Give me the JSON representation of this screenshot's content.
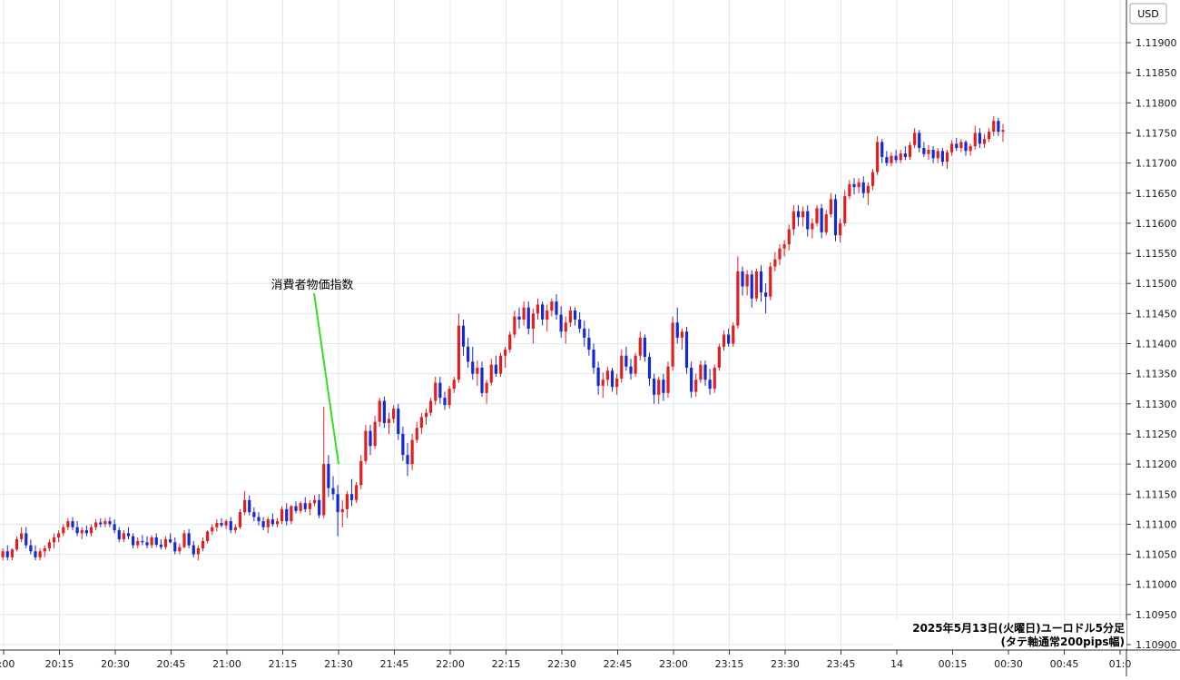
{
  "chart_data": {
    "type": "candlestick",
    "title": "2025年5月13日(火曜日)ユーロドル5分足",
    "subtitle": "(タテ軸通常200pips幅)",
    "currency": "USD",
    "ylim": [
      1.109,
      1.1195
    ],
    "y_ticks": [
      "1.11900",
      "1.11850",
      "1.11800",
      "1.11750",
      "1.11700",
      "1.11650",
      "1.11600",
      "1.11550",
      "1.11500",
      "1.11450",
      "1.11400",
      "1.11350",
      "1.11300",
      "1.11250",
      "1.11200",
      "1.11150",
      "1.11100",
      "1.11050",
      "1.11000",
      "1.10950",
      "1.10900"
    ],
    "x_ticks": [
      "0:00",
      "20:15",
      "20:30",
      "20:45",
      "21:00",
      "21:15",
      "21:30",
      "21:45",
      "22:00",
      "22:15",
      "22:30",
      "22:45",
      "23:00",
      "23:15",
      "23:30",
      "23:45",
      "14",
      "00:15",
      "00:30",
      "00:45",
      "01:0"
    ],
    "candle_step_minutes": 0.9,
    "colors": {
      "up": "#e02020",
      "down": "#1428d6",
      "annotation_line": "#33e01e",
      "grid": "#dde8ef"
    },
    "annotation": {
      "label": "消費者物価指数",
      "time": "21:30",
      "price": 1.112
    },
    "ohlc": [
      [
        1.1104,
        1.1105,
        1.1103,
        1.11045
      ],
      [
        1.11045,
        1.1106,
        1.1104,
        1.11055
      ],
      [
        1.11055,
        1.11065,
        1.1104,
        1.11045
      ],
      [
        1.11045,
        1.1106,
        1.1104,
        1.11058
      ],
      [
        1.11058,
        1.1108,
        1.11055,
        1.11075
      ],
      [
        1.11075,
        1.11095,
        1.1107,
        1.11085
      ],
      [
        1.11085,
        1.11095,
        1.1106,
        1.11065
      ],
      [
        1.11065,
        1.11075,
        1.1105,
        1.11055
      ],
      [
        1.11055,
        1.11065,
        1.1104,
        1.11045
      ],
      [
        1.11045,
        1.1106,
        1.1104,
        1.11055
      ],
      [
        1.11055,
        1.11065,
        1.11045,
        1.1106
      ],
      [
        1.1106,
        1.11075,
        1.11055,
        1.1107
      ],
      [
        1.1107,
        1.11085,
        1.1106,
        1.11078
      ],
      [
        1.11078,
        1.1109,
        1.1107,
        1.11085
      ],
      [
        1.11085,
        1.111,
        1.1108,
        1.11095
      ],
      [
        1.11095,
        1.1111,
        1.1109,
        1.11105
      ],
      [
        1.11105,
        1.11112,
        1.1109,
        1.11095
      ],
      [
        1.11095,
        1.11105,
        1.1108,
        1.11085
      ],
      [
        1.11085,
        1.11095,
        1.11075,
        1.1109
      ],
      [
        1.1109,
        1.11098,
        1.1108,
        1.11085
      ],
      [
        1.11085,
        1.111,
        1.1108,
        1.11095
      ],
      [
        1.11095,
        1.11108,
        1.1109,
        1.11103
      ],
      [
        1.11103,
        1.1111,
        1.11095,
        1.111
      ],
      [
        1.111,
        1.1111,
        1.11095,
        1.11105
      ],
      [
        1.11105,
        1.11112,
        1.11095,
        1.111
      ],
      [
        1.111,
        1.11108,
        1.11085,
        1.1109
      ],
      [
        1.1109,
        1.11095,
        1.1107,
        1.11075
      ],
      [
        1.11075,
        1.1109,
        1.1107,
        1.11085
      ],
      [
        1.11085,
        1.11095,
        1.11075,
        1.1108
      ],
      [
        1.1108,
        1.11085,
        1.1106,
        1.11065
      ],
      [
        1.11065,
        1.11078,
        1.1106,
        1.11072
      ],
      [
        1.11072,
        1.11082,
        1.11065,
        1.1107
      ],
      [
        1.1107,
        1.1108,
        1.1106,
        1.11065
      ],
      [
        1.11065,
        1.11082,
        1.1106,
        1.11078
      ],
      [
        1.11078,
        1.11085,
        1.11062,
        1.11066
      ],
      [
        1.11066,
        1.11075,
        1.11058,
        1.11062
      ],
      [
        1.11062,
        1.1108,
        1.11058,
        1.11075
      ],
      [
        1.11075,
        1.11085,
        1.11068,
        1.1107
      ],
      [
        1.1107,
        1.11078,
        1.1105,
        1.11055
      ],
      [
        1.11055,
        1.11068,
        1.1105,
        1.11062
      ],
      [
        1.11062,
        1.1109,
        1.1106,
        1.11085
      ],
      [
        1.11085,
        1.11092,
        1.1106,
        1.11065
      ],
      [
        1.11065,
        1.11072,
        1.11045,
        1.1105
      ],
      [
        1.1105,
        1.11065,
        1.1104,
        1.1106
      ],
      [
        1.1106,
        1.11078,
        1.11055,
        1.11072
      ],
      [
        1.11072,
        1.1109,
        1.11068,
        1.11088
      ],
      [
        1.11088,
        1.111,
        1.11082,
        1.11095
      ],
      [
        1.11095,
        1.11108,
        1.11088,
        1.11102
      ],
      [
        1.11102,
        1.1111,
        1.11095,
        1.11098
      ],
      [
        1.11098,
        1.11108,
        1.11092,
        1.11105
      ],
      [
        1.11105,
        1.11112,
        1.11085,
        1.1109
      ],
      [
        1.1109,
        1.111,
        1.11085,
        1.11095
      ],
      [
        1.11095,
        1.11125,
        1.11092,
        1.1112
      ],
      [
        1.1112,
        1.11155,
        1.11115,
        1.1114
      ],
      [
        1.1114,
        1.11148,
        1.11115,
        1.1112
      ],
      [
        1.1112,
        1.11128,
        1.11105,
        1.11112
      ],
      [
        1.11112,
        1.1112,
        1.11098,
        1.11105
      ],
      [
        1.11105,
        1.11112,
        1.1109,
        1.11095
      ],
      [
        1.11095,
        1.11112,
        1.11085,
        1.11108
      ],
      [
        1.11108,
        1.11118,
        1.11096,
        1.111
      ],
      [
        1.111,
        1.1111,
        1.11095,
        1.11105
      ],
      [
        1.11105,
        1.1113,
        1.111,
        1.11125
      ],
      [
        1.11125,
        1.11135,
        1.11098,
        1.11105
      ],
      [
        1.11105,
        1.11132,
        1.111,
        1.1113
      ],
      [
        1.1113,
        1.11138,
        1.11118,
        1.11122
      ],
      [
        1.11122,
        1.11138,
        1.11118,
        1.11135
      ],
      [
        1.11135,
        1.11145,
        1.1112,
        1.11125
      ],
      [
        1.11125,
        1.1114,
        1.11115,
        1.11135
      ],
      [
        1.11135,
        1.11148,
        1.1113,
        1.1114
      ],
      [
        1.1114,
        1.1115,
        1.1111,
        1.11115
      ],
      [
        1.11115,
        1.11295,
        1.1111,
        1.112
      ],
      [
        1.112,
        1.11215,
        1.11145,
        1.1116
      ],
      [
        1.1116,
        1.1118,
        1.1114,
        1.1115
      ],
      [
        1.1115,
        1.11165,
        1.1108,
        1.1112
      ],
      [
        1.1112,
        1.1114,
        1.11095,
        1.11125
      ],
      [
        1.11125,
        1.11155,
        1.1111,
        1.1115
      ],
      [
        1.1115,
        1.11175,
        1.1113,
        1.1114
      ],
      [
        1.1114,
        1.1117,
        1.11135,
        1.11165
      ],
      [
        1.11165,
        1.11215,
        1.11158,
        1.11205
      ],
      [
        1.11205,
        1.11265,
        1.112,
        1.11255
      ],
      [
        1.11255,
        1.11265,
        1.11215,
        1.1123
      ],
      [
        1.1123,
        1.1128,
        1.11225,
        1.1127
      ],
      [
        1.1127,
        1.1131,
        1.11262,
        1.11305
      ],
      [
        1.11305,
        1.11312,
        1.1126,
        1.11268
      ],
      [
        1.11268,
        1.11285,
        1.1125,
        1.11275
      ],
      [
        1.11275,
        1.11298,
        1.11268,
        1.11292
      ],
      [
        1.11292,
        1.113,
        1.1124,
        1.1125
      ],
      [
        1.1125,
        1.11262,
        1.11205,
        1.11215
      ],
      [
        1.11215,
        1.11235,
        1.1118,
        1.112
      ],
      [
        1.112,
        1.1125,
        1.1119,
        1.1124
      ],
      [
        1.1124,
        1.1127,
        1.11235,
        1.1126
      ],
      [
        1.1126,
        1.11285,
        1.1125,
        1.11278
      ],
      [
        1.11278,
        1.11292,
        1.11265,
        1.11285
      ],
      [
        1.11285,
        1.1131,
        1.1128,
        1.11305
      ],
      [
        1.11305,
        1.11345,
        1.11298,
        1.11335
      ],
      [
        1.11335,
        1.11345,
        1.113,
        1.1131
      ],
      [
        1.1131,
        1.1132,
        1.1129,
        1.11298
      ],
      [
        1.11298,
        1.1133,
        1.11292,
        1.11325
      ],
      [
        1.11325,
        1.11345,
        1.11318,
        1.1134
      ],
      [
        1.1134,
        1.1145,
        1.11335,
        1.1143
      ],
      [
        1.1143,
        1.1144,
        1.1138,
        1.11395
      ],
      [
        1.11395,
        1.1141,
        1.1136,
        1.1137
      ],
      [
        1.1137,
        1.11395,
        1.1134,
        1.1135
      ],
      [
        1.1135,
        1.11372,
        1.1133,
        1.1136
      ],
      [
        1.1136,
        1.1137,
        1.11312,
        1.11318
      ],
      [
        1.11318,
        1.1134,
        1.113,
        1.11335
      ],
      [
        1.11335,
        1.11375,
        1.1133,
        1.11365
      ],
      [
        1.11365,
        1.1138,
        1.11345,
        1.1135
      ],
      [
        1.1135,
        1.11385,
        1.11345,
        1.1138
      ],
      [
        1.1138,
        1.11395,
        1.1136,
        1.1139
      ],
      [
        1.1139,
        1.1142,
        1.11385,
        1.11415
      ],
      [
        1.11415,
        1.11455,
        1.1141,
        1.11445
      ],
      [
        1.11445,
        1.1146,
        1.11425,
        1.1144
      ],
      [
        1.1144,
        1.1147,
        1.1143,
        1.1146
      ],
      [
        1.1146,
        1.1147,
        1.11415,
        1.11425
      ],
      [
        1.11425,
        1.11458,
        1.114,
        1.1145
      ],
      [
        1.1145,
        1.11475,
        1.1144,
        1.11465
      ],
      [
        1.11465,
        1.1147,
        1.1143,
        1.1144
      ],
      [
        1.1144,
        1.11465,
        1.1142,
        1.11455
      ],
      [
        1.11455,
        1.11475,
        1.11445,
        1.1147
      ],
      [
        1.1147,
        1.11482,
        1.1144,
        1.11448
      ],
      [
        1.11448,
        1.11462,
        1.1141,
        1.1142
      ],
      [
        1.1142,
        1.11445,
        1.114,
        1.11435
      ],
      [
        1.11435,
        1.11462,
        1.11428,
        1.11455
      ],
      [
        1.11455,
        1.1146,
        1.1143,
        1.1144
      ],
      [
        1.1144,
        1.11452,
        1.11418,
        1.11425
      ],
      [
        1.11425,
        1.11438,
        1.11395,
        1.1141
      ],
      [
        1.1141,
        1.11425,
        1.1138,
        1.1139
      ],
      [
        1.1139,
        1.114,
        1.1135,
        1.1136
      ],
      [
        1.1136,
        1.1137,
        1.11315,
        1.1133
      ],
      [
        1.1133,
        1.11352,
        1.1131,
        1.1134
      ],
      [
        1.1134,
        1.11362,
        1.1133,
        1.11355
      ],
      [
        1.11355,
        1.1136,
        1.1132,
        1.11328
      ],
      [
        1.11328,
        1.1135,
        1.11315,
        1.11342
      ],
      [
        1.11342,
        1.1139,
        1.11335,
        1.1138
      ],
      [
        1.1138,
        1.11395,
        1.11355,
        1.11362
      ],
      [
        1.11362,
        1.11375,
        1.1134,
        1.1135
      ],
      [
        1.1135,
        1.11385,
        1.11345,
        1.1138
      ],
      [
        1.1138,
        1.1142,
        1.11372,
        1.1141
      ],
      [
        1.1141,
        1.11415,
        1.1137,
        1.11378
      ],
      [
        1.11378,
        1.11385,
        1.1133,
        1.11342
      ],
      [
        1.11342,
        1.1135,
        1.113,
        1.11315
      ],
      [
        1.11315,
        1.11345,
        1.113,
        1.1134
      ],
      [
        1.1134,
        1.1135,
        1.11305,
        1.11318
      ],
      [
        1.11318,
        1.1137,
        1.1131,
        1.11362
      ],
      [
        1.11362,
        1.11445,
        1.11355,
        1.11435
      ],
      [
        1.11435,
        1.1146,
        1.114,
        1.1141
      ],
      [
        1.1141,
        1.11425,
        1.1139,
        1.1142
      ],
      [
        1.1142,
        1.11428,
        1.1135,
        1.1136
      ],
      [
        1.1136,
        1.1137,
        1.1131,
        1.1132
      ],
      [
        1.1132,
        1.1135,
        1.11312,
        1.1134
      ],
      [
        1.1134,
        1.11372,
        1.11335,
        1.11365
      ],
      [
        1.11365,
        1.11372,
        1.1133,
        1.1134
      ],
      [
        1.1134,
        1.11358,
        1.11315,
        1.11325
      ],
      [
        1.11325,
        1.11365,
        1.11318,
        1.1136
      ],
      [
        1.1136,
        1.114,
        1.11355,
        1.11395
      ],
      [
        1.11395,
        1.11422,
        1.11388,
        1.11415
      ],
      [
        1.11415,
        1.11425,
        1.11395,
        1.114
      ],
      [
        1.114,
        1.11435,
        1.11395,
        1.1143
      ],
      [
        1.1143,
        1.11545,
        1.11425,
        1.1152
      ],
      [
        1.1152,
        1.11528,
        1.1148,
        1.11495
      ],
      [
        1.11495,
        1.11522,
        1.1148,
        1.11515
      ],
      [
        1.11515,
        1.11522,
        1.1146,
        1.11475
      ],
      [
        1.11475,
        1.11525,
        1.1147,
        1.1152
      ],
      [
        1.1152,
        1.1153,
        1.1147,
        1.11485
      ],
      [
        1.11485,
        1.115,
        1.1145,
        1.11478
      ],
      [
        1.11478,
        1.11535,
        1.11472,
        1.11528
      ],
      [
        1.11528,
        1.11552,
        1.1152,
        1.1154
      ],
      [
        1.1154,
        1.11565,
        1.1153,
        1.11558
      ],
      [
        1.11558,
        1.11572,
        1.11545,
        1.11565
      ],
      [
        1.11565,
        1.11598,
        1.11555,
        1.1159
      ],
      [
        1.1159,
        1.1163,
        1.1158,
        1.1162
      ],
      [
        1.1162,
        1.1163,
        1.11595,
        1.1161
      ],
      [
        1.1161,
        1.11628,
        1.11595,
        1.1162
      ],
      [
        1.1162,
        1.1163,
        1.11578,
        1.1159
      ],
      [
        1.1159,
        1.11608,
        1.11575,
        1.116
      ],
      [
        1.116,
        1.1163,
        1.11595,
        1.11625
      ],
      [
        1.11625,
        1.11632,
        1.11575,
        1.11585
      ],
      [
        1.11585,
        1.11622,
        1.1158,
        1.11615
      ],
      [
        1.11615,
        1.1165,
        1.1161,
        1.1164
      ],
      [
        1.1164,
        1.11648,
        1.1157,
        1.1158
      ],
      [
        1.1158,
        1.11608,
        1.11568,
        1.116
      ],
      [
        1.116,
        1.11655,
        1.11595,
        1.11645
      ],
      [
        1.11645,
        1.11672,
        1.1164,
        1.11665
      ],
      [
        1.11665,
        1.11675,
        1.11648,
        1.1166
      ],
      [
        1.1166,
        1.11675,
        1.1165,
        1.11668
      ],
      [
        1.11668,
        1.11678,
        1.11642,
        1.1165
      ],
      [
        1.1165,
        1.11668,
        1.1163,
        1.11662
      ],
      [
        1.11662,
        1.1169,
        1.11655,
        1.11685
      ],
      [
        1.11685,
        1.11745,
        1.1168,
        1.11735
      ],
      [
        1.11735,
        1.1174,
        1.117,
        1.1171
      ],
      [
        1.1171,
        1.1172,
        1.11695,
        1.117
      ],
      [
        1.117,
        1.11718,
        1.11695,
        1.11712
      ],
      [
        1.11712,
        1.11722,
        1.117,
        1.11705
      ],
      [
        1.11705,
        1.11722,
        1.117,
        1.11716
      ],
      [
        1.11716,
        1.11728,
        1.11705,
        1.1171
      ],
      [
        1.1171,
        1.11735,
        1.11705,
        1.1173
      ],
      [
        1.1173,
        1.11758,
        1.11725,
        1.1175
      ],
      [
        1.1175,
        1.11755,
        1.11718,
        1.11725
      ],
      [
        1.11725,
        1.11735,
        1.1171,
        1.11715
      ],
      [
        1.11715,
        1.1173,
        1.11705,
        1.11722
      ],
      [
        1.11722,
        1.11728,
        1.117,
        1.11708
      ],
      [
        1.11708,
        1.11725,
        1.117,
        1.1172
      ],
      [
        1.1172,
        1.11725,
        1.11695,
        1.11702
      ],
      [
        1.11702,
        1.11722,
        1.1169,
        1.11718
      ],
      [
        1.11718,
        1.11738,
        1.11712,
        1.11732
      ],
      [
        1.11732,
        1.11742,
        1.1172,
        1.11725
      ],
      [
        1.11725,
        1.1174,
        1.11718,
        1.11735
      ],
      [
        1.11735,
        1.11738,
        1.11712,
        1.1172
      ],
      [
        1.1172,
        1.11732,
        1.11712,
        1.11728
      ],
      [
        1.11728,
        1.11762,
        1.11722,
        1.1175
      ],
      [
        1.1175,
        1.11758,
        1.11725,
        1.11732
      ],
      [
        1.11732,
        1.11748,
        1.11725,
        1.1174
      ],
      [
        1.1174,
        1.11758,
        1.11735,
        1.11752
      ],
      [
        1.11752,
        1.11778,
        1.11745,
        1.1177
      ],
      [
        1.1177,
        1.11775,
        1.11745,
        1.11752
      ],
      [
        1.11752,
        1.11765,
        1.11735,
        1.11755
      ]
    ],
    "footnote_line1": "2025年5月13日(火曜日)ユーロドル5分足",
    "footnote_line2": "(タテ軸通常200pips幅)"
  }
}
